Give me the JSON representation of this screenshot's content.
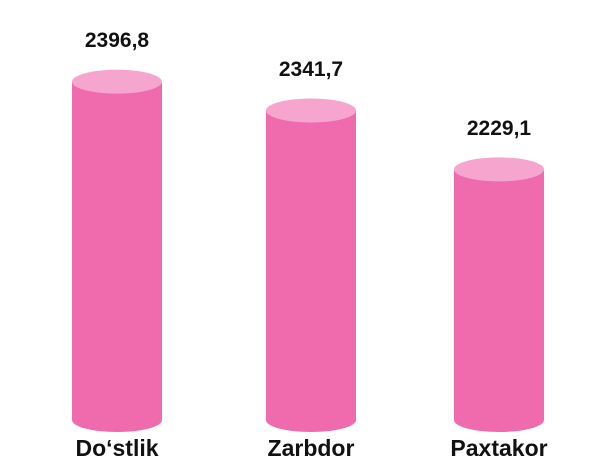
{
  "chart_data": {
    "type": "cylinder-bar",
    "categories": [
      "Do‘stlik",
      "Zarbdor",
      "Paxtakor"
    ],
    "values": [
      2396.8,
      2341.7,
      2229.1
    ],
    "value_labels": [
      "2396,8",
      "2341,7",
      "2229,1"
    ],
    "color": "#f06aae",
    "ylim": [
      1750,
      2400
    ]
  }
}
